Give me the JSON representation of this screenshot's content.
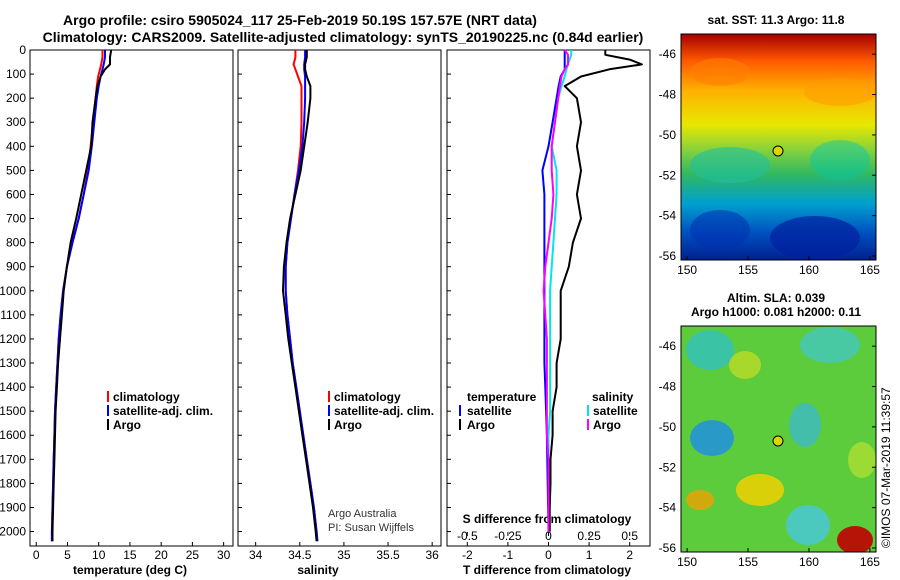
{
  "header": {
    "title_line1": "Argo profile: csiro 5905024_117 25-Feb-2019 50.19S 157.57E (NRT data)",
    "title_line2": "Climatology: CARS2009. Satellite-adjusted climatology: synTS_20190225.nc (0.84d earlier)"
  },
  "colors": {
    "climatology": "#ff0000",
    "satellite": "#0000ff",
    "argo": "#000000",
    "t_satellite": "#0000ff",
    "s_satellite": "#00e5ee",
    "s_argo": "#ff00ff"
  },
  "credits": {
    "line1": "Argo Australia",
    "line2": "PI: Susan Wijffels",
    "stamp": "©IMOS 07-Mar-2019 11:39:57"
  },
  "depth_axis": {
    "ticks": [
      "0",
      "100",
      "200",
      "300",
      "400",
      "500",
      "600",
      "700",
      "800",
      "900",
      "1000",
      "1100",
      "1200",
      "1300",
      "1400",
      "1500",
      "1600",
      "1700",
      "1800",
      "1900",
      "2000"
    ]
  },
  "panels": {
    "temperature": {
      "xlabel": "temperature (deg C)",
      "ticks": [
        "0",
        "5",
        "10",
        "15",
        "20",
        "25",
        "30"
      ],
      "legend": [
        "climatology",
        "satellite-adj. clim.",
        "Argo"
      ]
    },
    "salinity": {
      "xlabel": "salinity",
      "ticks": [
        "34",
        "34.5",
        "35",
        "35.5",
        "36"
      ],
      "legend": [
        "climatology",
        "satellite-adj. clim.",
        "Argo"
      ]
    },
    "difference": {
      "xlabel": "T difference from climatology",
      "ticks": [
        "-2",
        "-1",
        "0",
        "1",
        "2"
      ],
      "s_label": "S difference from climatology",
      "s_ticks": [
        "-0.5",
        "-0.25",
        "0",
        "0.25",
        "0.5"
      ],
      "legend_t_title": "temperature",
      "legend_s_title": "salinity",
      "legend_t": [
        "satellite",
        "Argo"
      ],
      "legend_s": [
        "satellite",
        "Argo"
      ]
    }
  },
  "maps": {
    "sst": {
      "title": "sat. SST: 11.3 Argo: 11.8",
      "yticks": [
        "-46",
        "-48",
        "-50",
        "-52",
        "-54",
        "-56"
      ],
      "xticks": [
        "150",
        "155",
        "160",
        "165"
      ]
    },
    "sla": {
      "title_line1": "Altim. SLA: 0.039",
      "title_line2": "Argo h1000: 0.081 h2000: 0.11",
      "yticks": [
        "-46",
        "-48",
        "-50",
        "-52",
        "-54",
        "-56"
      ],
      "xticks": [
        "150",
        "155",
        "160",
        "165"
      ]
    }
  },
  "chart_data": [
    {
      "type": "line",
      "name": "temperature profile",
      "xlabel": "temperature (deg C)",
      "ylabel": "",
      "xlim": [
        -1,
        31.5
      ],
      "ylim": [
        2060,
        0
      ],
      "grid": false,
      "legend_position": "bottom-center",
      "y": [
        0,
        30,
        60,
        80,
        110,
        150,
        200,
        300,
        400,
        500,
        600,
        700,
        800,
        900,
        1000,
        1100,
        1200,
        1300,
        1400,
        1500,
        1600,
        1700,
        1800,
        1900,
        2000,
        2040
      ],
      "series": [
        {
          "name": "climatology",
          "x": [
            10.6,
            10.6,
            10.4,
            10.2,
            9.9,
            9.7,
            9.5,
            9.1,
            8.7,
            8.3,
            7.6,
            6.8,
            5.8,
            4.9,
            4.3,
            3.9,
            3.6,
            3.4,
            3.2,
            3.0,
            2.9,
            2.8,
            2.7,
            2.6,
            2.5,
            2.5
          ]
        },
        {
          "name": "satellite-adj. clim.",
          "x": [
            11.0,
            11.0,
            10.8,
            10.6,
            10.3,
            10.0,
            9.7,
            9.3,
            8.9,
            8.4,
            7.6,
            6.8,
            5.8,
            4.9,
            4.3,
            3.9,
            3.6,
            3.4,
            3.2,
            3.0,
            2.9,
            2.8,
            2.7,
            2.6,
            2.5,
            2.5
          ]
        },
        {
          "name": "Argo",
          "x": [
            12.0,
            11.8,
            11.8,
            11.0,
            10.3,
            9.8,
            9.5,
            9.0,
            8.8,
            8.0,
            7.2,
            6.4,
            5.5,
            4.9,
            4.4,
            4.1,
            3.8,
            3.5,
            3.3,
            3.1,
            3.0,
            2.9,
            2.8,
            2.7,
            2.6,
            2.6
          ]
        }
      ]
    },
    {
      "type": "line",
      "name": "salinity profile",
      "xlabel": "salinity",
      "ylabel": "",
      "xlim": [
        33.8,
        36.1
      ],
      "ylim": [
        2060,
        0
      ],
      "grid": false,
      "legend_position": "bottom-center",
      "y": [
        0,
        30,
        60,
        80,
        110,
        150,
        200,
        300,
        400,
        500,
        600,
        700,
        800,
        900,
        1000,
        1100,
        1200,
        1300,
        1400,
        1500,
        1600,
        1700,
        1800,
        1900,
        2000,
        2040
      ],
      "series": [
        {
          "name": "climatology",
          "x": [
            34.45,
            34.45,
            34.43,
            34.45,
            34.48,
            34.52,
            34.52,
            34.52,
            34.51,
            34.48,
            34.44,
            34.4,
            34.36,
            34.34,
            34.34,
            34.36,
            34.39,
            34.42,
            34.46,
            34.5,
            34.54,
            34.58,
            34.62,
            34.66,
            34.69,
            34.7
          ]
        },
        {
          "name": "satellite-adj. clim.",
          "x": [
            34.56,
            34.56,
            34.55,
            34.55,
            34.56,
            34.56,
            34.56,
            34.55,
            34.53,
            34.49,
            34.44,
            34.4,
            34.36,
            34.34,
            34.34,
            34.36,
            34.39,
            34.42,
            34.46,
            34.5,
            34.54,
            34.58,
            34.62,
            34.66,
            34.69,
            34.7
          ]
        },
        {
          "name": "Argo",
          "x": [
            34.58,
            34.58,
            34.56,
            34.56,
            34.58,
            34.62,
            34.62,
            34.59,
            34.55,
            34.51,
            34.45,
            34.39,
            34.35,
            34.32,
            34.31,
            34.34,
            34.37,
            34.41,
            34.45,
            34.49,
            34.53,
            34.57,
            34.61,
            34.65,
            34.68,
            34.69
          ]
        }
      ]
    },
    {
      "type": "line",
      "name": "difference from climatology",
      "xlabel": "T difference from climatology",
      "x2label": "S difference from climatology",
      "xlim": [
        -2.5,
        2.5
      ],
      "x2lim": [
        -0.625,
        0.625
      ],
      "ylim": [
        2060,
        0
      ],
      "grid": false,
      "y": [
        0,
        20,
        40,
        60,
        80,
        110,
        150,
        200,
        300,
        400,
        500,
        600,
        700,
        800,
        900,
        1000,
        1100,
        1200,
        1300,
        1400,
        1500,
        1600,
        1700,
        1800,
        1900,
        2000
      ],
      "series": [
        {
          "name": "temperature satellite",
          "x": [
            0.4,
            0.4,
            0.4,
            0.4,
            0.4,
            0.3,
            0.25,
            0.2,
            0.1,
            0.0,
            -0.15,
            -0.1,
            -0.1,
            -0.1,
            -0.1,
            -0.1,
            -0.1,
            -0.1,
            -0.1,
            -0.08,
            -0.06,
            -0.04,
            -0.03,
            -0.02,
            -0.01,
            0.0
          ]
        },
        {
          "name": "temperature Argo",
          "x": [
            1.4,
            1.4,
            2.0,
            2.3,
            1.5,
            0.8,
            0.4,
            0.7,
            0.8,
            0.7,
            0.8,
            0.7,
            0.8,
            0.6,
            0.5,
            0.3,
            0.3,
            0.3,
            0.2,
            0.2,
            0.1,
            0.1,
            0.05,
            0.05,
            0.03,
            0.03
          ]
        },
        {
          "name": "salinity satellite",
          "x": [
            0.14,
            0.14,
            0.13,
            0.12,
            0.11,
            0.1,
            0.08,
            0.06,
            0.04,
            0.02,
            0.05,
            0.05,
            0.04,
            0.03,
            0.02,
            0.01,
            0.01,
            0.01,
            0.01,
            0.01,
            0.01,
            0.0,
            0.0,
            0.0,
            0.0,
            0.0
          ]
        },
        {
          "name": "salinity Argo",
          "x": [
            0.1,
            0.12,
            0.12,
            0.12,
            0.1,
            0.08,
            0.07,
            0.06,
            0.04,
            0.02,
            0.02,
            0.03,
            0.02,
            0.0,
            -0.02,
            -0.03,
            -0.02,
            -0.01,
            -0.01,
            -0.01,
            -0.01,
            -0.01,
            0.0,
            0.0,
            0.0,
            0.0
          ]
        }
      ]
    }
  ]
}
